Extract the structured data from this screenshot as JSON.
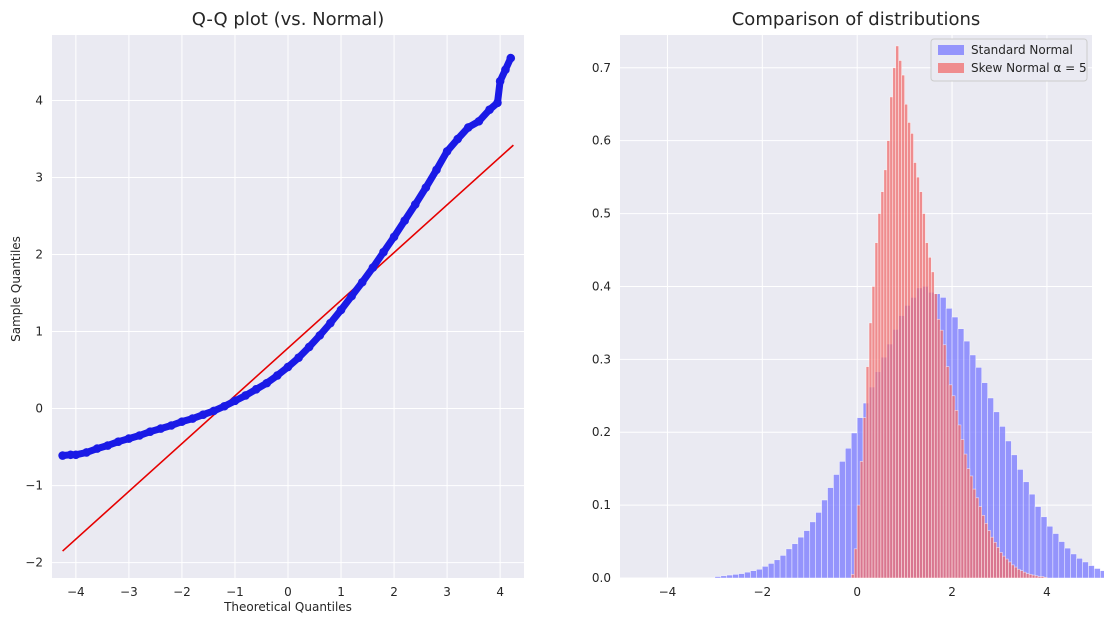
{
  "chart_data": [
    {
      "type": "scatter",
      "title": "Q-Q plot (vs. Normal)",
      "xlabel": "Theoretical Quantiles",
      "ylabel": "Sample Quantiles",
      "xlim": [
        -4.45,
        4.45
      ],
      "ylim": [
        -2.2,
        4.85
      ],
      "xticks": [
        -4,
        -3,
        -2,
        -1,
        0,
        1,
        2,
        3,
        4
      ],
      "yticks": [
        -2,
        -1,
        0,
        1,
        2,
        3,
        4
      ],
      "tick_labels_x": [
        "−4",
        "−3",
        "−2",
        "−1",
        "0",
        "1",
        "2",
        "3",
        "4"
      ],
      "tick_labels_y": [
        "−2",
        "−1",
        "0",
        "1",
        "2",
        "3",
        "4"
      ],
      "grid": true,
      "series": [
        {
          "kind": "points",
          "color": "#1a1ae6",
          "x": [
            -4.25,
            -4.1,
            -4.0,
            -3.8,
            -3.6,
            -3.4,
            -3.2,
            -3.0,
            -2.8,
            -2.6,
            -2.4,
            -2.2,
            -2.0,
            -1.8,
            -1.6,
            -1.4,
            -1.2,
            -1.0,
            -0.8,
            -0.6,
            -0.4,
            -0.2,
            0.0,
            0.2,
            0.4,
            0.6,
            0.8,
            1.0,
            1.2,
            1.4,
            1.6,
            1.8,
            2.0,
            2.2,
            2.4,
            2.6,
            2.8,
            3.0,
            3.2,
            3.4,
            3.6,
            3.8,
            3.95,
            4.0,
            4.1,
            4.2
          ],
          "y": [
            -0.61,
            -0.6,
            -0.6,
            -0.57,
            -0.52,
            -0.48,
            -0.43,
            -0.39,
            -0.35,
            -0.3,
            -0.26,
            -0.22,
            -0.17,
            -0.13,
            -0.08,
            -0.03,
            0.03,
            0.1,
            0.17,
            0.25,
            0.33,
            0.43,
            0.54,
            0.66,
            0.8,
            0.95,
            1.11,
            1.28,
            1.46,
            1.64,
            1.83,
            2.03,
            2.23,
            2.44,
            2.65,
            2.87,
            3.1,
            3.34,
            3.5,
            3.65,
            3.73,
            3.88,
            3.97,
            4.25,
            4.4,
            4.55
          ]
        },
        {
          "kind": "line",
          "color": "#e60000",
          "x": [
            -4.25,
            4.25
          ],
          "y": [
            -1.85,
            3.42
          ]
        }
      ]
    },
    {
      "type": "bar",
      "title": "Comparison of distributions",
      "xlim": [
        -5.0,
        4.95
      ],
      "ylim": [
        0,
        0.745
      ],
      "xticks": [
        -4,
        -2,
        0,
        2,
        4
      ],
      "yticks": [
        0.0,
        0.1,
        0.2,
        0.3,
        0.4,
        0.5,
        0.6,
        0.7
      ],
      "tick_labels_x": [
        "−4",
        "−2",
        "0",
        "2",
        "4"
      ],
      "tick_labels_y": [
        "0.0",
        "0.1",
        "0.2",
        "0.3",
        "0.4",
        "0.5",
        "0.6",
        "0.7"
      ],
      "grid": true,
      "legend": "top-right",
      "series": [
        {
          "name": "Standard Normal",
          "color": "#7777ff",
          "opacity": 0.75,
          "bin_start": -4.0,
          "bin_width": 0.125,
          "values": [
            0.0,
            0.0,
            0.0,
            0.0,
            0.0,
            0.0,
            0.0,
            0.0,
            0.002,
            0.003,
            0.004,
            0.005,
            0.006,
            0.008,
            0.01,
            0.012,
            0.016,
            0.02,
            0.025,
            0.031,
            0.04,
            0.047,
            0.056,
            0.065,
            0.077,
            0.09,
            0.107,
            0.124,
            0.142,
            0.16,
            0.178,
            0.199,
            0.22,
            0.24,
            0.262,
            0.283,
            0.303,
            0.321,
            0.341,
            0.36,
            0.374,
            0.385,
            0.398,
            0.4,
            0.392,
            0.39,
            0.385,
            0.37,
            0.358,
            0.342,
            0.325,
            0.306,
            0.289,
            0.268,
            0.247,
            0.228,
            0.208,
            0.188,
            0.169,
            0.149,
            0.132,
            0.115,
            0.098,
            0.084,
            0.071,
            0.061,
            0.05,
            0.041,
            0.033,
            0.027,
            0.022,
            0.017,
            0.013,
            0.01,
            0.007,
            0.005,
            0.004,
            0.003,
            0.002,
            0.001
          ]
        },
        {
          "name": "Skew Normal α = 5",
          "color": "#f06c6c",
          "opacity": 0.75,
          "bin_start": -0.125,
          "bin_width": 0.0625,
          "values": [
            0.005,
            0.04,
            0.1,
            0.16,
            0.22,
            0.29,
            0.35,
            0.4,
            0.46,
            0.5,
            0.53,
            0.56,
            0.6,
            0.66,
            0.7,
            0.73,
            0.71,
            0.69,
            0.65,
            0.625,
            0.61,
            0.57,
            0.55,
            0.53,
            0.5,
            0.46,
            0.44,
            0.42,
            0.39,
            0.355,
            0.34,
            0.32,
            0.29,
            0.265,
            0.25,
            0.23,
            0.21,
            0.19,
            0.17,
            0.15,
            0.14,
            0.122,
            0.11,
            0.098,
            0.086,
            0.075,
            0.065,
            0.056,
            0.049,
            0.042,
            0.035,
            0.03,
            0.026,
            0.022,
            0.018,
            0.015,
            0.012,
            0.01,
            0.008,
            0.006,
            0.005,
            0.004,
            0.003,
            0.002,
            0.002,
            0.001
          ]
        }
      ]
    }
  ]
}
